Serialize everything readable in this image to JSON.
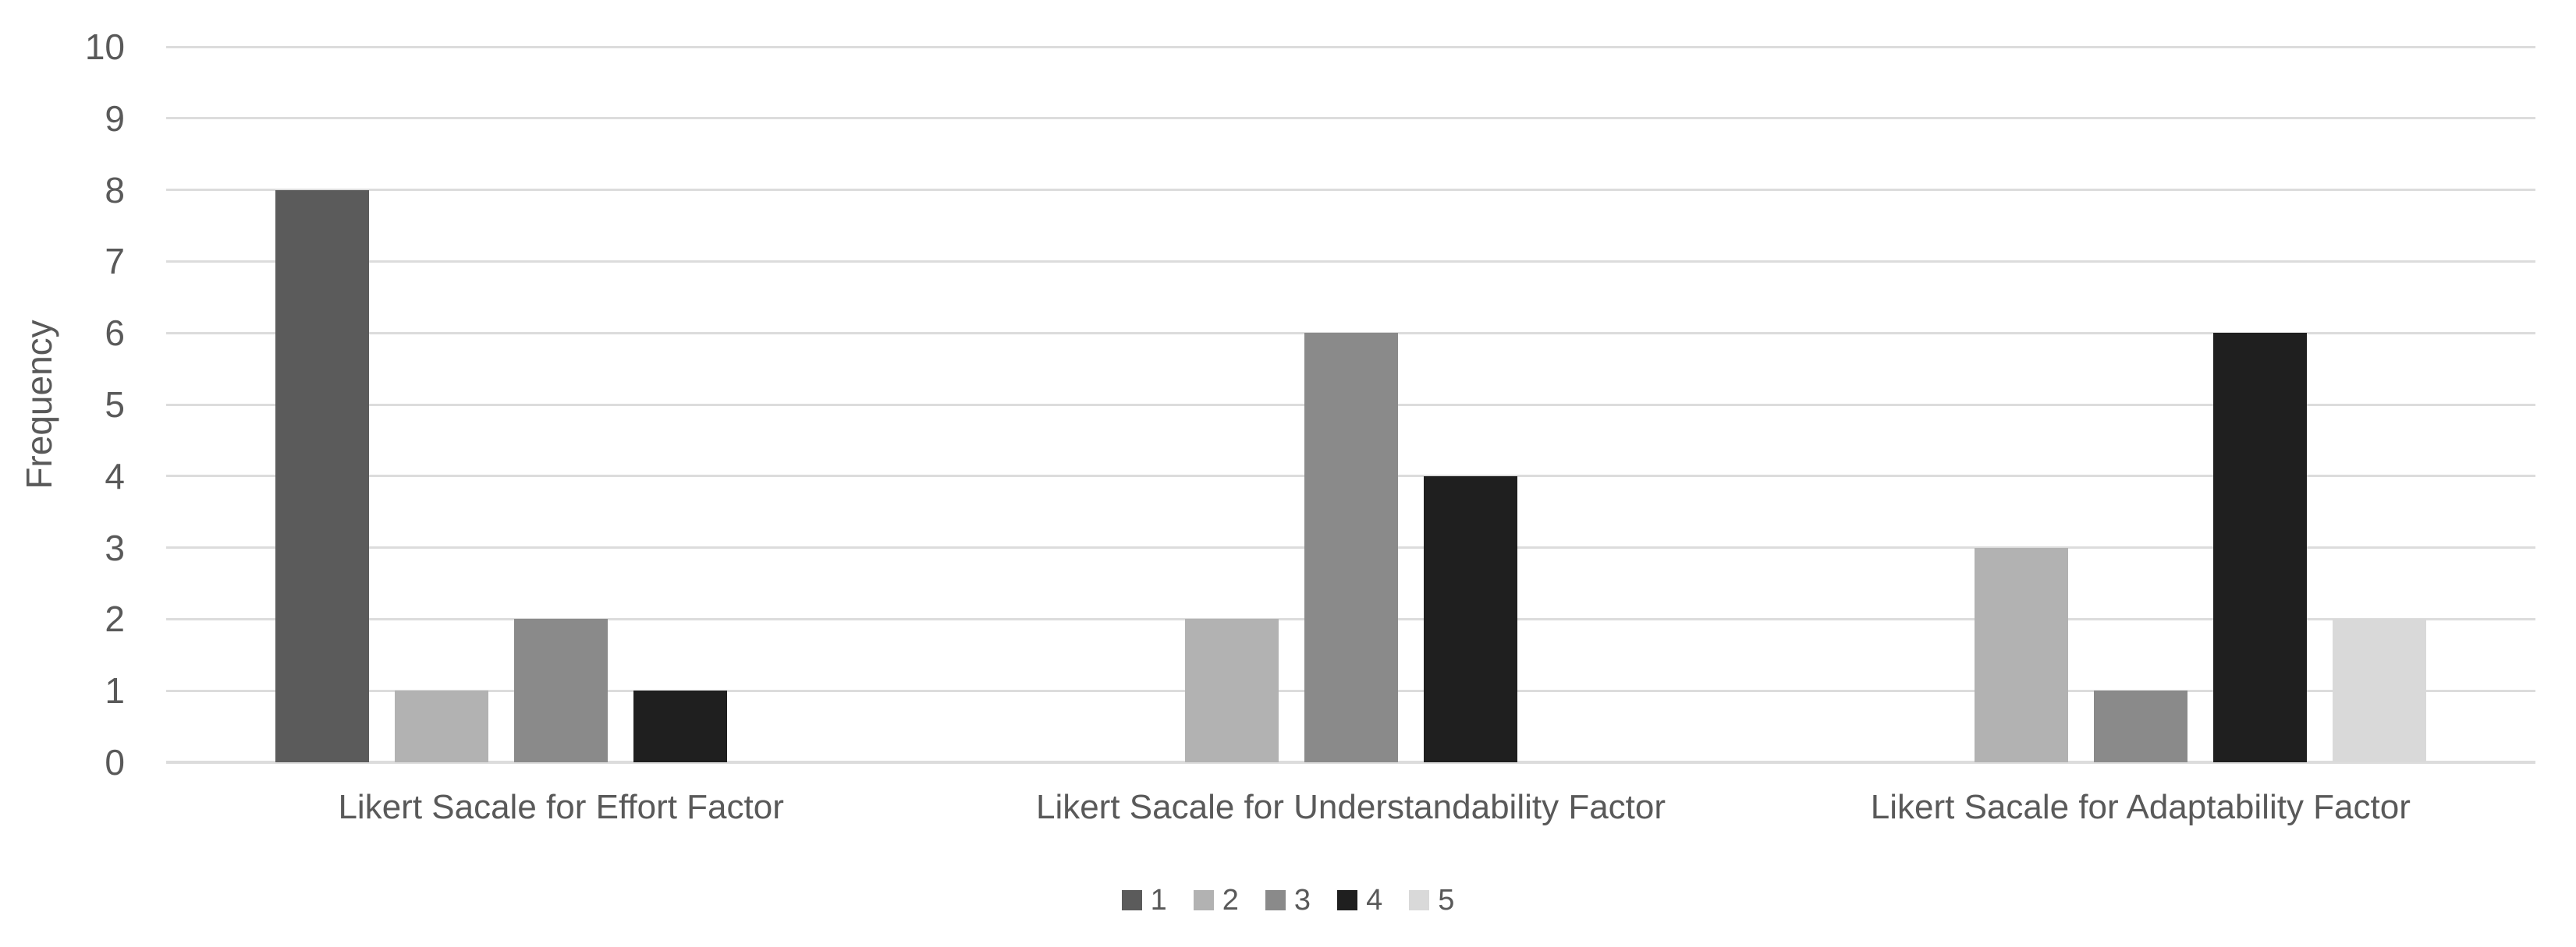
{
  "chart_data": {
    "type": "bar",
    "title": "",
    "categories": [
      "Likert Sacale for Effort Factor",
      "Likert Sacale for Understandability Factor",
      "Likert Sacale for Adaptability Factor"
    ],
    "series": [
      {
        "name": "1",
        "color": "#5b5b5b",
        "values": [
          8,
          0,
          0
        ]
      },
      {
        "name": "2",
        "color": "#b2b2b2",
        "values": [
          1,
          2,
          3
        ]
      },
      {
        "name": "3",
        "color": "#8a8a8a",
        "values": [
          2,
          6,
          1
        ]
      },
      {
        "name": "4",
        "color": "#1f1f1f",
        "values": [
          1,
          4,
          6
        ]
      },
      {
        "name": "5",
        "color": "#d9d9d9",
        "values": [
          0,
          0,
          2
        ]
      }
    ],
    "xlabel": "",
    "ylabel": "Frequency",
    "ylim": [
      0,
      10
    ],
    "yticks": [
      0,
      1,
      2,
      3,
      4,
      5,
      6,
      7,
      8,
      9,
      10
    ],
    "grid": "horizontal",
    "gridline_color": "#dcdcdc",
    "axis_text_color": "#595959",
    "background_color": "#ffffff",
    "legend_position": "bottom",
    "legend_labels": [
      "1",
      "2",
      "3",
      "4",
      "5"
    ]
  }
}
